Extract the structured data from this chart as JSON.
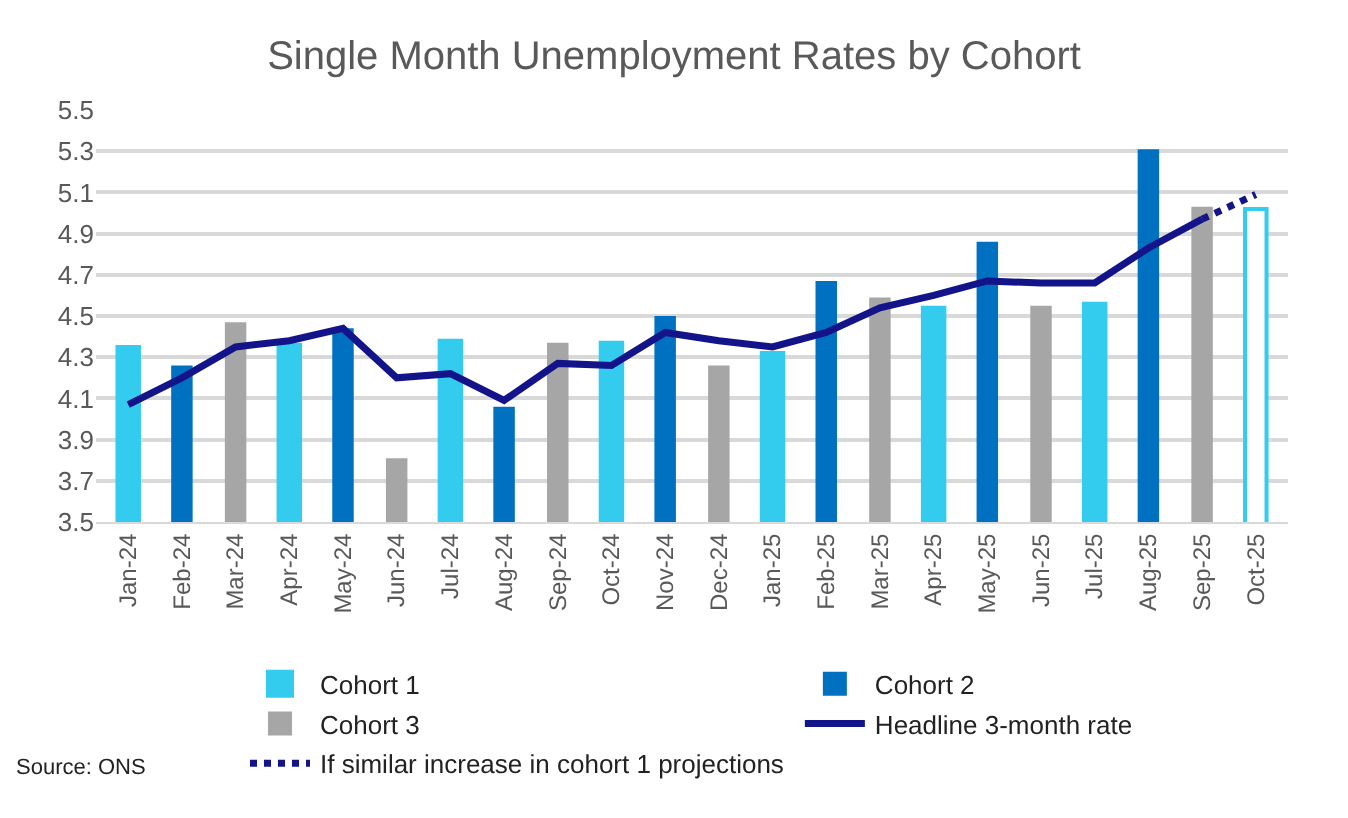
{
  "chart_data": {
    "type": "bar",
    "title": "Single Month Unemployment Rates by Cohort",
    "categories": [
      "Jan-24",
      "Feb-24",
      "Mar-24",
      "Apr-24",
      "May-24",
      "Jun-24",
      "Jul-24",
      "Aug-24",
      "Sep-24",
      "Oct-24",
      "Nov-24",
      "Dec-24",
      "Jan-25",
      "Feb-25",
      "Mar-25",
      "Apr-25",
      "May-25",
      "Jun-25",
      "Jul-25",
      "Aug-25",
      "Sep-25",
      "Oct-25"
    ],
    "series": [
      {
        "name": "Cohort 1",
        "color": "#33ccee",
        "colors": [
          "#33ccee",
          null,
          null,
          "#33ccee",
          null,
          null,
          "#33ccee",
          null,
          null,
          "#33ccee",
          null,
          null,
          "#33ccee",
          null,
          null,
          "#33ccee",
          null,
          null,
          "#33ccee",
          null,
          null,
          "#ffffff"
        ],
        "values": [
          4.35,
          null,
          null,
          4.36,
          null,
          null,
          4.38,
          null,
          null,
          4.37,
          null,
          null,
          4.32,
          null,
          null,
          4.54,
          null,
          null,
          4.56,
          null,
          null,
          5.02
        ]
      },
      {
        "name": "Cohort 2",
        "color": "#0070c0",
        "values": [
          null,
          4.26,
          null,
          null,
          4.44,
          null,
          null,
          4.06,
          null,
          null,
          4.5,
          null,
          null,
          4.67,
          null,
          null,
          4.86,
          null,
          null,
          5.31,
          null,
          null
        ]
      },
      {
        "name": "Cohort 3",
        "color": "#a6a6a6",
        "values": [
          null,
          null,
          4.47,
          null,
          null,
          3.81,
          null,
          null,
          4.37,
          null,
          null,
          4.26,
          null,
          null,
          4.59,
          null,
          null,
          4.55,
          null,
          null,
          5.03,
          null
        ]
      },
      {
        "name": "Headline 3-month rate",
        "type": "line",
        "line_style": "solid",
        "color": "#14148a",
        "values": [
          4.07,
          4.2,
          4.35,
          4.38,
          4.44,
          4.2,
          4.22,
          4.09,
          4.27,
          4.26,
          4.42,
          4.38,
          4.35,
          4.42,
          4.54,
          4.6,
          4.67,
          4.66,
          4.66,
          4.83,
          4.97,
          null
        ]
      },
      {
        "name": "If similar increase in cohort 1 projections",
        "type": "line",
        "line_style": "dotted",
        "color": "#14148a",
        "values": [
          null,
          null,
          null,
          null,
          null,
          null,
          null,
          null,
          null,
          null,
          null,
          null,
          null,
          null,
          null,
          null,
          null,
          null,
          null,
          null,
          4.97,
          5.09
        ]
      }
    ],
    "ylim": [
      3.5,
      5.5
    ],
    "yticks": [
      3.5,
      3.7,
      3.9,
      4.1,
      4.3,
      4.5,
      4.7,
      4.9,
      5.1,
      5.3,
      5.5
    ],
    "grid": "y",
    "legend": "bottom",
    "marker": "none",
    "annotations": [
      "Source: ONS"
    ]
  }
}
